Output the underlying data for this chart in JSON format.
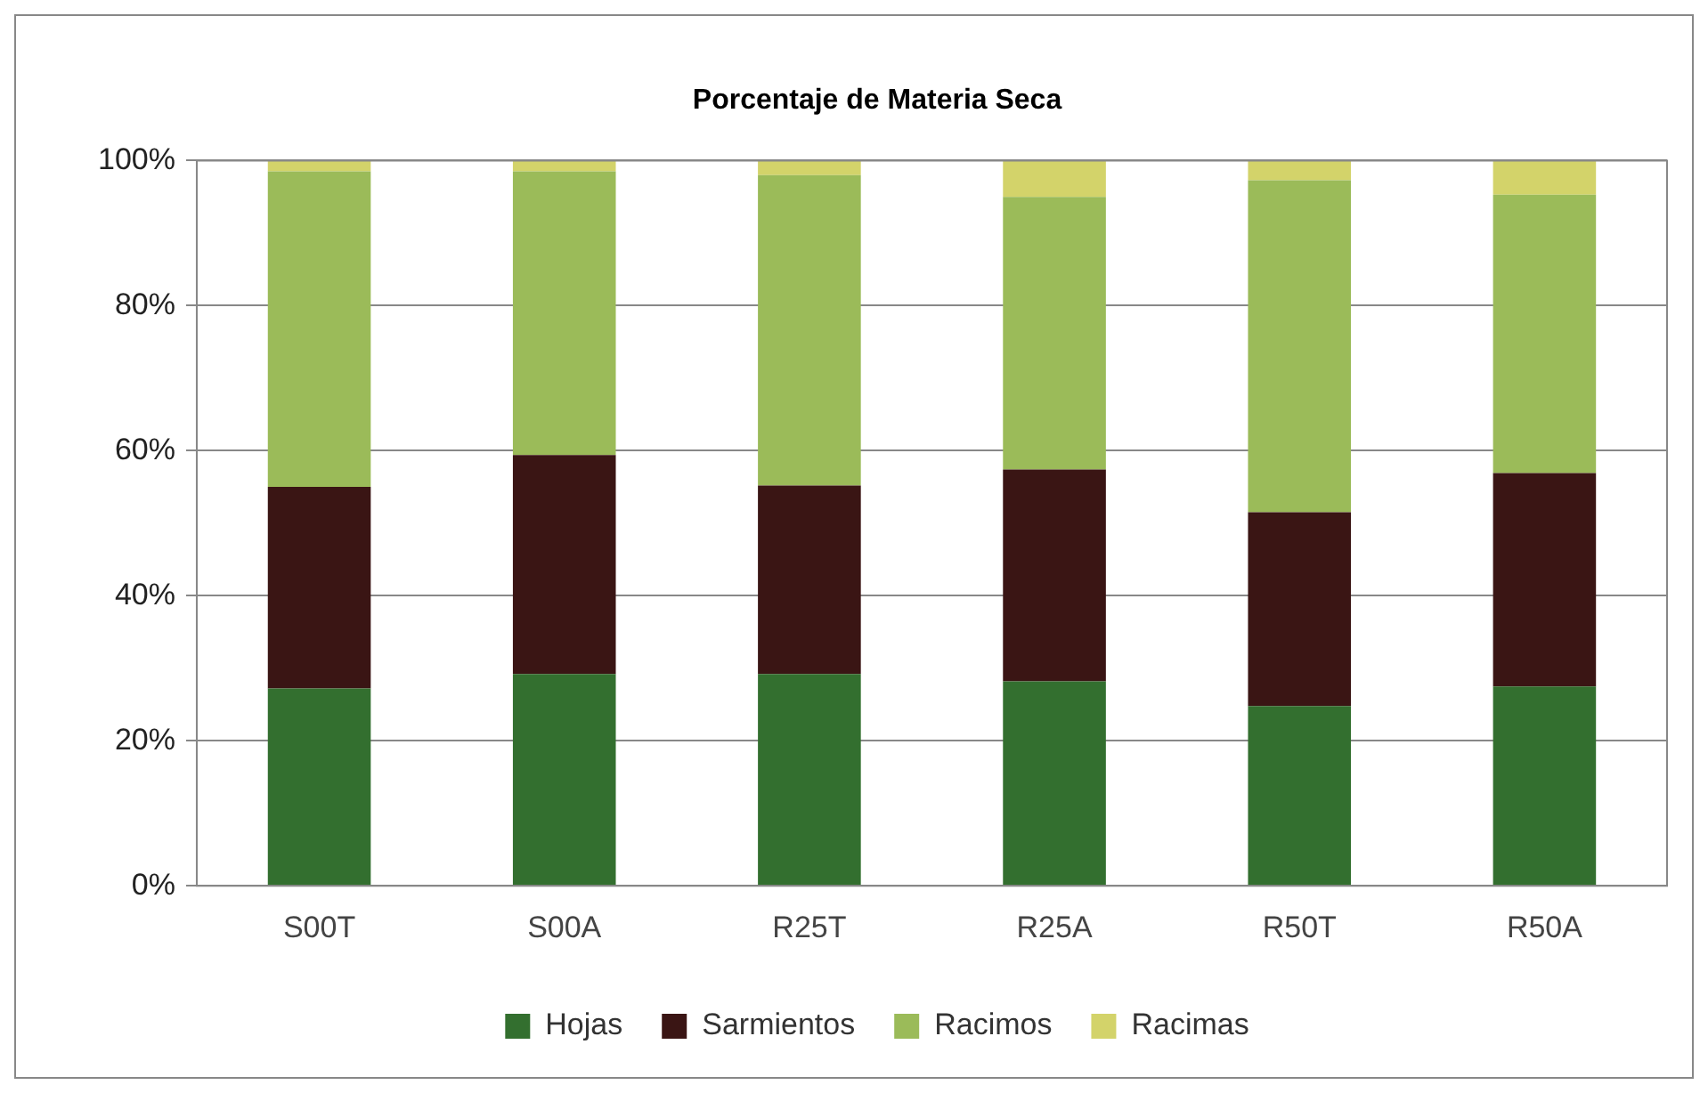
{
  "chart_data": {
    "type": "bar",
    "title": "Porcentaje de Materia Seca",
    "stacked": true,
    "categories": [
      "S00T",
      "S00A",
      "R25T",
      "R25A",
      "R50T",
      "R50A"
    ],
    "series": [
      {
        "name": "Hojas",
        "color": "#336f2f",
        "values": [
          27.2,
          29.2,
          29.2,
          28.2,
          24.8,
          27.5
        ]
      },
      {
        "name": "Sarmientos",
        "color": "#3a1514",
        "values": [
          27.8,
          30.2,
          26.0,
          29.2,
          26.7,
          29.4
        ]
      },
      {
        "name": "Racimos",
        "color": "#9bbb59",
        "values": [
          43.5,
          39.1,
          42.8,
          37.6,
          45.8,
          38.4
        ]
      },
      {
        "name": "Racimas",
        "color": "#d3d36a",
        "values": [
          1.5,
          1.5,
          2.0,
          5.0,
          2.7,
          4.7
        ]
      }
    ],
    "ylim": [
      0,
      100
    ],
    "yticks": [
      {
        "value": 0,
        "label": "0%"
      },
      {
        "value": 20,
        "label": "20%"
      },
      {
        "value": 40,
        "label": "40%"
      },
      {
        "value": 60,
        "label": "60%"
      },
      {
        "value": 80,
        "label": "80%"
      },
      {
        "value": 100,
        "label": "100%"
      }
    ],
    "grid": "y",
    "legend": "bottom"
  }
}
